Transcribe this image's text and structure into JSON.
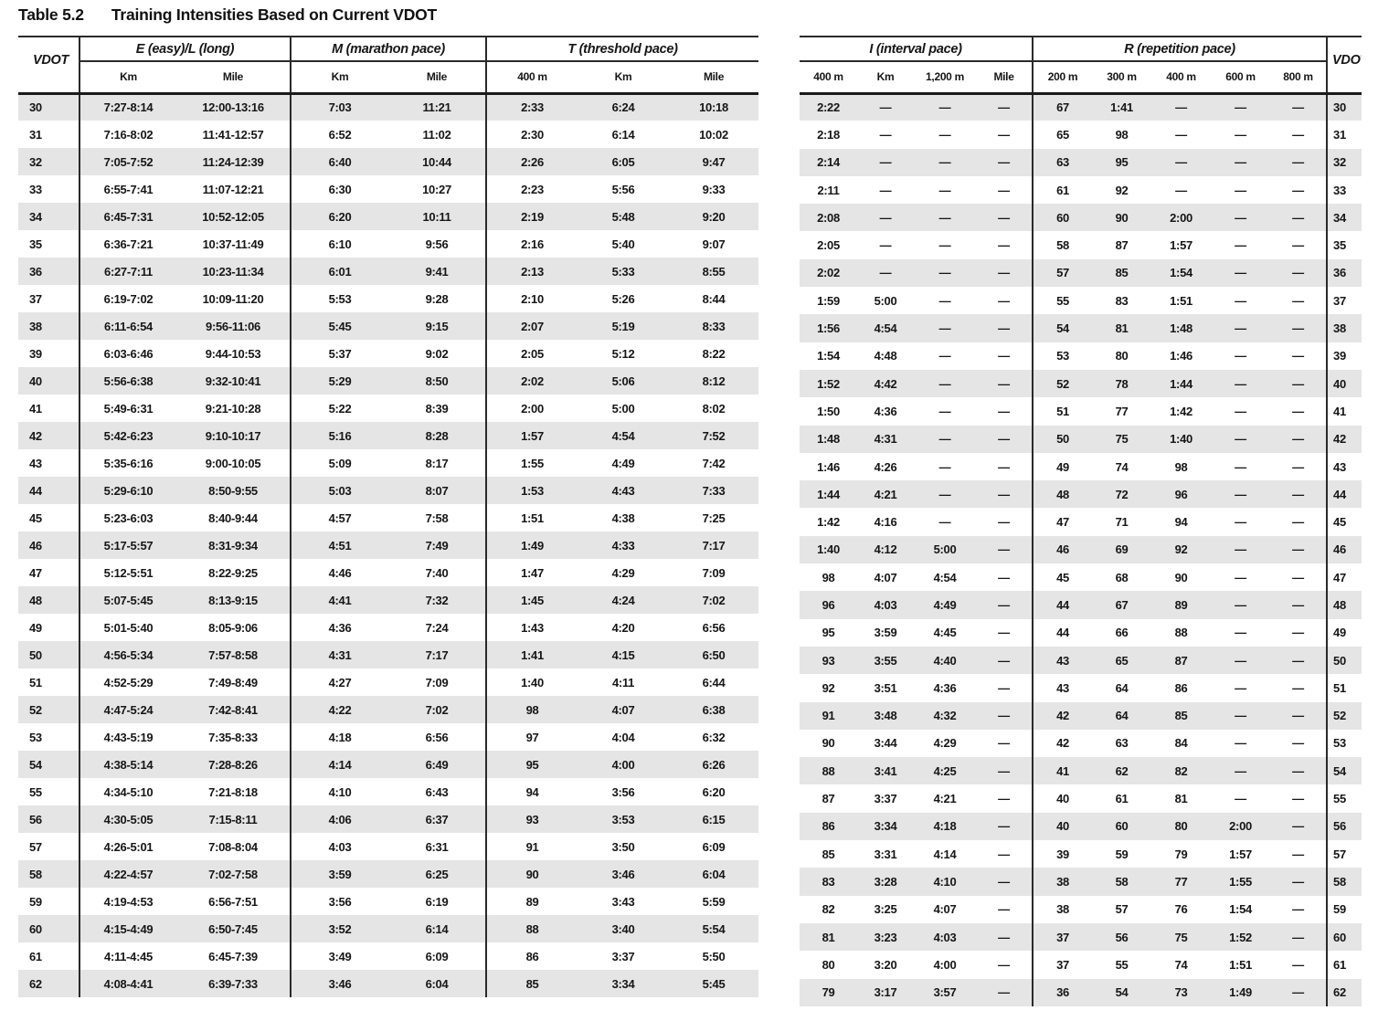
{
  "title": {
    "label": "Table 5.2",
    "text": "Training Intensities Based on Current VDOT"
  },
  "colors": {
    "row_alt": "#e5e5e5",
    "rule": "#2a2a2a",
    "text": "#161616",
    "background": "#ffffff"
  },
  "left_table": {
    "vdot_header": "VDOT",
    "groups": [
      {
        "label": "E (easy)/L (long)",
        "cols": [
          "Km",
          "Mile"
        ]
      },
      {
        "label": "M (marathon pace)",
        "cols": [
          "Km",
          "Mile"
        ]
      },
      {
        "label": "T (threshold pace)",
        "cols": [
          "400 m",
          "Km",
          "Mile"
        ]
      }
    ],
    "rows": [
      [
        30,
        "7:27-8:14",
        "12:00-13:16",
        "7:03",
        "11:21",
        "2:33",
        "6:24",
        "10:18"
      ],
      [
        31,
        "7:16-8:02",
        "11:41-12:57",
        "6:52",
        "11:02",
        "2:30",
        "6:14",
        "10:02"
      ],
      [
        32,
        "7:05-7:52",
        "11:24-12:39",
        "6:40",
        "10:44",
        "2:26",
        "6:05",
        "9:47"
      ],
      [
        33,
        "6:55-7:41",
        "11:07-12:21",
        "6:30",
        "10:27",
        "2:23",
        "5:56",
        "9:33"
      ],
      [
        34,
        "6:45-7:31",
        "10:52-12:05",
        "6:20",
        "10:11",
        "2:19",
        "5:48",
        "9:20"
      ],
      [
        35,
        "6:36-7:21",
        "10:37-11:49",
        "6:10",
        "9:56",
        "2:16",
        "5:40",
        "9:07"
      ],
      [
        36,
        "6:27-7:11",
        "10:23-11:34",
        "6:01",
        "9:41",
        "2:13",
        "5:33",
        "8:55"
      ],
      [
        37,
        "6:19-7:02",
        "10:09-11:20",
        "5:53",
        "9:28",
        "2:10",
        "5:26",
        "8:44"
      ],
      [
        38,
        "6:11-6:54",
        "9:56-11:06",
        "5:45",
        "9:15",
        "2:07",
        "5:19",
        "8:33"
      ],
      [
        39,
        "6:03-6:46",
        "9:44-10:53",
        "5:37",
        "9:02",
        "2:05",
        "5:12",
        "8:22"
      ],
      [
        40,
        "5:56-6:38",
        "9:32-10:41",
        "5:29",
        "8:50",
        "2:02",
        "5:06",
        "8:12"
      ],
      [
        41,
        "5:49-6:31",
        "9:21-10:28",
        "5:22",
        "8:39",
        "2:00",
        "5:00",
        "8:02"
      ],
      [
        42,
        "5:42-6:23",
        "9:10-10:17",
        "5:16",
        "8:28",
        "1:57",
        "4:54",
        "7:52"
      ],
      [
        43,
        "5:35-6:16",
        "9:00-10:05",
        "5:09",
        "8:17",
        "1:55",
        "4:49",
        "7:42"
      ],
      [
        44,
        "5:29-6:10",
        "8:50-9:55",
        "5:03",
        "8:07",
        "1:53",
        "4:43",
        "7:33"
      ],
      [
        45,
        "5:23-6:03",
        "8:40-9:44",
        "4:57",
        "7:58",
        "1:51",
        "4:38",
        "7:25"
      ],
      [
        46,
        "5:17-5:57",
        "8:31-9:34",
        "4:51",
        "7:49",
        "1:49",
        "4:33",
        "7:17"
      ],
      [
        47,
        "5:12-5:51",
        "8:22-9:25",
        "4:46",
        "7:40",
        "1:47",
        "4:29",
        "7:09"
      ],
      [
        48,
        "5:07-5:45",
        "8:13-9:15",
        "4:41",
        "7:32",
        "1:45",
        "4:24",
        "7:02"
      ],
      [
        49,
        "5:01-5:40",
        "8:05-9:06",
        "4:36",
        "7:24",
        "1:43",
        "4:20",
        "6:56"
      ],
      [
        50,
        "4:56-5:34",
        "7:57-8:58",
        "4:31",
        "7:17",
        "1:41",
        "4:15",
        "6:50"
      ],
      [
        51,
        "4:52-5:29",
        "7:49-8:49",
        "4:27",
        "7:09",
        "1:40",
        "4:11",
        "6:44"
      ],
      [
        52,
        "4:47-5:24",
        "7:42-8:41",
        "4:22",
        "7:02",
        "98",
        "4:07",
        "6:38"
      ],
      [
        53,
        "4:43-5:19",
        "7:35-8:33",
        "4:18",
        "6:56",
        "97",
        "4:04",
        "6:32"
      ],
      [
        54,
        "4:38-5:14",
        "7:28-8:26",
        "4:14",
        "6:49",
        "95",
        "4:00",
        "6:26"
      ],
      [
        55,
        "4:34-5:10",
        "7:21-8:18",
        "4:10",
        "6:43",
        "94",
        "3:56",
        "6:20"
      ],
      [
        56,
        "4:30-5:05",
        "7:15-8:11",
        "4:06",
        "6:37",
        "93",
        "3:53",
        "6:15"
      ],
      [
        57,
        "4:26-5:01",
        "7:08-8:04",
        "4:03",
        "6:31",
        "91",
        "3:50",
        "6:09"
      ],
      [
        58,
        "4:22-4:57",
        "7:02-7:58",
        "3:59",
        "6:25",
        "90",
        "3:46",
        "6:04"
      ],
      [
        59,
        "4:19-4:53",
        "6:56-7:51",
        "3:56",
        "6:19",
        "89",
        "3:43",
        "5:59"
      ],
      [
        60,
        "4:15-4:49",
        "6:50-7:45",
        "3:52",
        "6:14",
        "88",
        "3:40",
        "5:54"
      ],
      [
        61,
        "4:11-4:45",
        "6:45-7:39",
        "3:49",
        "6:09",
        "86",
        "3:37",
        "5:50"
      ],
      [
        62,
        "4:08-4:41",
        "6:39-7:33",
        "3:46",
        "6:04",
        "85",
        "3:34",
        "5:45"
      ]
    ]
  },
  "right_table": {
    "vdot_header": "VDOT",
    "groups": [
      {
        "label": "I (interval pace)",
        "cols": [
          "400 m",
          "Km",
          "1,200 m",
          "Mile"
        ]
      },
      {
        "label": "R (repetition pace)",
        "cols": [
          "200 m",
          "300 m",
          "400 m",
          "600 m",
          "800 m"
        ]
      }
    ],
    "rows": [
      [
        "2:22",
        "—",
        "—",
        "—",
        "67",
        "1:41",
        "—",
        "—",
        "—",
        30
      ],
      [
        "2:18",
        "—",
        "—",
        "—",
        "65",
        "98",
        "—",
        "—",
        "—",
        31
      ],
      [
        "2:14",
        "—",
        "—",
        "—",
        "63",
        "95",
        "—",
        "—",
        "—",
        32
      ],
      [
        "2:11",
        "—",
        "—",
        "—",
        "61",
        "92",
        "—",
        "—",
        "—",
        33
      ],
      [
        "2:08",
        "—",
        "—",
        "—",
        "60",
        "90",
        "2:00",
        "—",
        "—",
        34
      ],
      [
        "2:05",
        "—",
        "—",
        "—",
        "58",
        "87",
        "1:57",
        "—",
        "—",
        35
      ],
      [
        "2:02",
        "—",
        "—",
        "—",
        "57",
        "85",
        "1:54",
        "—",
        "—",
        36
      ],
      [
        "1:59",
        "5:00",
        "—",
        "—",
        "55",
        "83",
        "1:51",
        "—",
        "—",
        37
      ],
      [
        "1:56",
        "4:54",
        "—",
        "—",
        "54",
        "81",
        "1:48",
        "—",
        "—",
        38
      ],
      [
        "1:54",
        "4:48",
        "—",
        "—",
        "53",
        "80",
        "1:46",
        "—",
        "—",
        39
      ],
      [
        "1:52",
        "4:42",
        "—",
        "—",
        "52",
        "78",
        "1:44",
        "—",
        "—",
        40
      ],
      [
        "1:50",
        "4:36",
        "—",
        "—",
        "51",
        "77",
        "1:42",
        "—",
        "—",
        41
      ],
      [
        "1:48",
        "4:31",
        "—",
        "—",
        "50",
        "75",
        "1:40",
        "—",
        "—",
        42
      ],
      [
        "1:46",
        "4:26",
        "—",
        "—",
        "49",
        "74",
        "98",
        "—",
        "—",
        43
      ],
      [
        "1:44",
        "4:21",
        "—",
        "—",
        "48",
        "72",
        "96",
        "—",
        "—",
        44
      ],
      [
        "1:42",
        "4:16",
        "—",
        "—",
        "47",
        "71",
        "94",
        "—",
        "—",
        45
      ],
      [
        "1:40",
        "4:12",
        "5:00",
        "—",
        "46",
        "69",
        "92",
        "—",
        "—",
        46
      ],
      [
        "98",
        "4:07",
        "4:54",
        "—",
        "45",
        "68",
        "90",
        "—",
        "—",
        47
      ],
      [
        "96",
        "4:03",
        "4:49",
        "—",
        "44",
        "67",
        "89",
        "—",
        "—",
        48
      ],
      [
        "95",
        "3:59",
        "4:45",
        "—",
        "44",
        "66",
        "88",
        "—",
        "—",
        49
      ],
      [
        "93",
        "3:55",
        "4:40",
        "—",
        "43",
        "65",
        "87",
        "—",
        "—",
        50
      ],
      [
        "92",
        "3:51",
        "4:36",
        "—",
        "43",
        "64",
        "86",
        "—",
        "—",
        51
      ],
      [
        "91",
        "3:48",
        "4:32",
        "—",
        "42",
        "64",
        "85",
        "—",
        "—",
        52
      ],
      [
        "90",
        "3:44",
        "4:29",
        "—",
        "42",
        "63",
        "84",
        "—",
        "—",
        53
      ],
      [
        "88",
        "3:41",
        "4:25",
        "—",
        "41",
        "62",
        "82",
        "—",
        "—",
        54
      ],
      [
        "87",
        "3:37",
        "4:21",
        "—",
        "40",
        "61",
        "81",
        "—",
        "—",
        55
      ],
      [
        "86",
        "3:34",
        "4:18",
        "—",
        "40",
        "60",
        "80",
        "2:00",
        "—",
        56
      ],
      [
        "85",
        "3:31",
        "4:14",
        "—",
        "39",
        "59",
        "79",
        "1:57",
        "—",
        57
      ],
      [
        "83",
        "3:28",
        "4:10",
        "—",
        "38",
        "58",
        "77",
        "1:55",
        "—",
        58
      ],
      [
        "82",
        "3:25",
        "4:07",
        "—",
        "38",
        "57",
        "76",
        "1:54",
        "—",
        59
      ],
      [
        "81",
        "3:23",
        "4:03",
        "—",
        "37",
        "56",
        "75",
        "1:52",
        "—",
        60
      ],
      [
        "80",
        "3:20",
        "4:00",
        "—",
        "37",
        "55",
        "74",
        "1:51",
        "—",
        61
      ],
      [
        "79",
        "3:17",
        "3:57",
        "—",
        "36",
        "54",
        "73",
        "1:49",
        "—",
        62
      ]
    ]
  }
}
